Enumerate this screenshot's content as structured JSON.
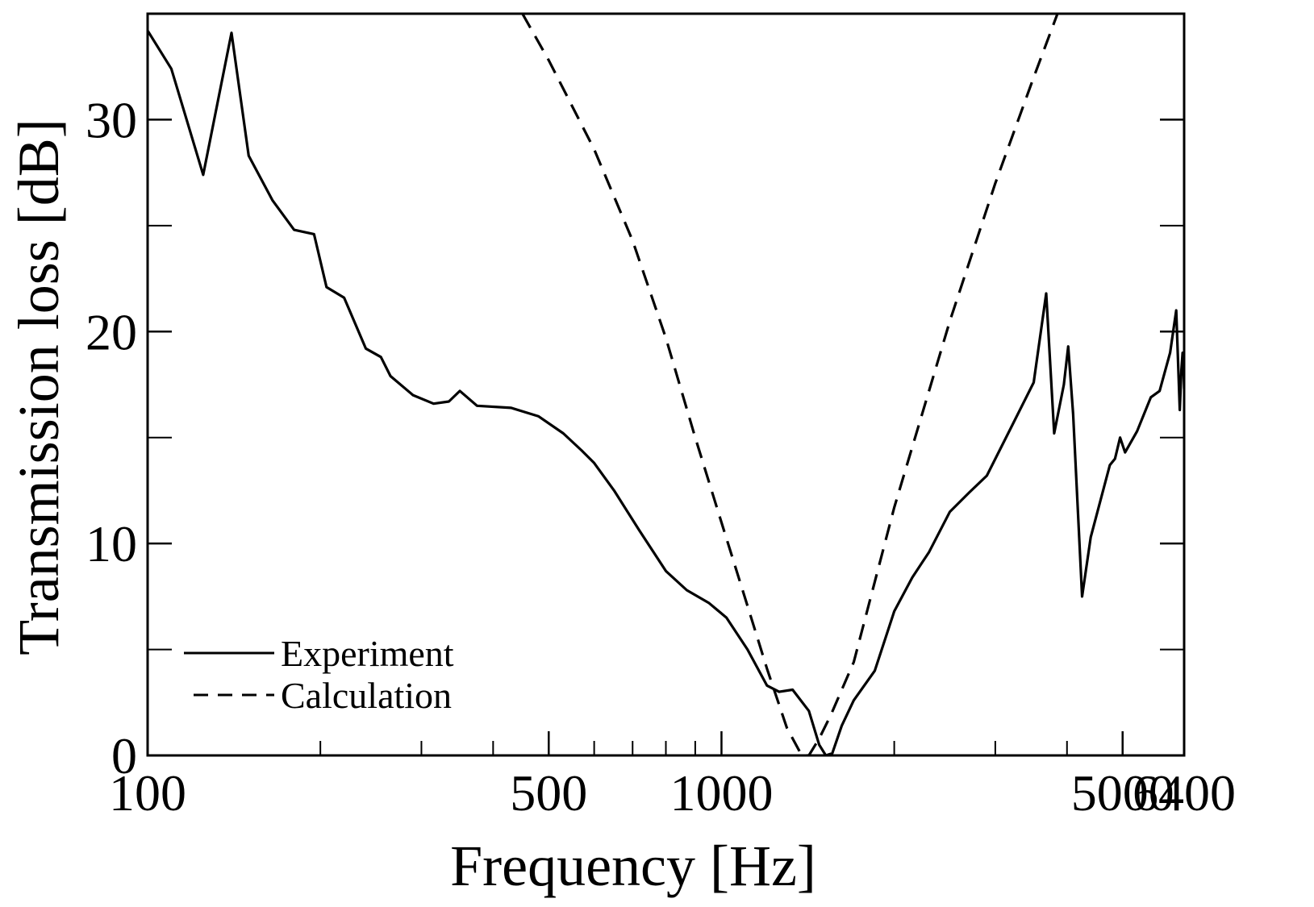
{
  "chart_data": {
    "type": "line",
    "title": "",
    "xlabel": "Frequency [Hz]",
    "ylabel": "Transmission loss [dB]",
    "xscale": "log",
    "xlim": [
      100,
      6400
    ],
    "ylim": [
      0,
      35
    ],
    "grid": false,
    "legend_position": "bottom-left",
    "x_ticks_major": [
      100,
      500,
      1000,
      5000,
      6400
    ],
    "x_tick_labels": [
      "100",
      "500",
      "1000",
      "5000",
      "6400"
    ],
    "x_ticks_minor": [
      200,
      300,
      400,
      600,
      700,
      800,
      900,
      2000,
      3000,
      4000
    ],
    "y_ticks_major": [
      0,
      10,
      20,
      30
    ],
    "y_tick_labels": [
      "0",
      "10",
      "20",
      "30"
    ],
    "y_ticks_minor": [
      5,
      15,
      25
    ],
    "series": [
      {
        "name": "Experiment",
        "style": "solid",
        "color": "#000000",
        "points": [
          [
            100,
            34.2
          ],
          [
            110,
            32.4
          ],
          [
            125,
            27.4
          ],
          [
            140,
            34.1
          ],
          [
            150,
            28.3
          ],
          [
            165,
            26.2
          ],
          [
            180,
            24.8
          ],
          [
            195,
            24.6
          ],
          [
            205,
            22.1
          ],
          [
            220,
            21.6
          ],
          [
            240,
            19.2
          ],
          [
            255,
            18.8
          ],
          [
            265,
            17.9
          ],
          [
            290,
            17.0
          ],
          [
            315,
            16.6
          ],
          [
            335,
            16.7
          ],
          [
            350,
            17.2
          ],
          [
            375,
            16.5
          ],
          [
            430,
            16.4
          ],
          [
            480,
            16.0
          ],
          [
            530,
            15.2
          ],
          [
            570,
            14.4
          ],
          [
            600,
            13.8
          ],
          [
            650,
            12.5
          ],
          [
            720,
            10.6
          ],
          [
            800,
            8.7
          ],
          [
            870,
            7.8
          ],
          [
            950,
            7.2
          ],
          [
            1020,
            6.5
          ],
          [
            1110,
            5.0
          ],
          [
            1200,
            3.3
          ],
          [
            1260,
            3.0
          ],
          [
            1330,
            3.1
          ],
          [
            1420,
            2.1
          ],
          [
            1480,
            0.5
          ],
          [
            1520,
            0.0
          ],
          [
            1560,
            0.1
          ],
          [
            1620,
            1.4
          ],
          [
            1700,
            2.6
          ],
          [
            1850,
            4.0
          ],
          [
            2000,
            6.8
          ],
          [
            2150,
            8.4
          ],
          [
            2300,
            9.6
          ],
          [
            2500,
            11.5
          ],
          [
            2700,
            12.4
          ],
          [
            2900,
            13.2
          ],
          [
            3200,
            15.5
          ],
          [
            3500,
            17.6
          ],
          [
            3680,
            21.8
          ],
          [
            3800,
            15.2
          ],
          [
            3950,
            17.5
          ],
          [
            4020,
            19.3
          ],
          [
            4100,
            16.1
          ],
          [
            4250,
            7.5
          ],
          [
            4400,
            10.3
          ],
          [
            4750,
            13.7
          ],
          [
            4850,
            14.0
          ],
          [
            4950,
            15.0
          ],
          [
            5050,
            14.3
          ],
          [
            5300,
            15.3
          ],
          [
            5600,
            16.9
          ],
          [
            5800,
            17.2
          ],
          [
            6050,
            19.0
          ],
          [
            6200,
            21.0
          ],
          [
            6290,
            16.3
          ],
          [
            6330,
            18.2
          ],
          [
            6360,
            19.0
          ],
          [
            6385,
            18.3
          ],
          [
            6400,
            17.3
          ]
        ]
      },
      {
        "name": "Calculation",
        "style": "dashed",
        "color": "#000000",
        "points": [
          [
            450,
            35.0
          ],
          [
            500,
            32.8
          ],
          [
            600,
            28.6
          ],
          [
            700,
            24.3
          ],
          [
            800,
            19.7
          ],
          [
            900,
            15.0
          ],
          [
            1000,
            11.0
          ],
          [
            1100,
            7.4
          ],
          [
            1200,
            4.1
          ],
          [
            1300,
            1.3
          ],
          [
            1380,
            0.0
          ],
          [
            1420,
            0.0
          ],
          [
            1480,
            0.8
          ],
          [
            1550,
            1.9
          ],
          [
            1700,
            4.4
          ],
          [
            2000,
            11.7
          ],
          [
            2500,
            20.5
          ],
          [
            3000,
            27.0
          ],
          [
            3500,
            32.0
          ],
          [
            3850,
            35.0
          ]
        ]
      }
    ]
  }
}
